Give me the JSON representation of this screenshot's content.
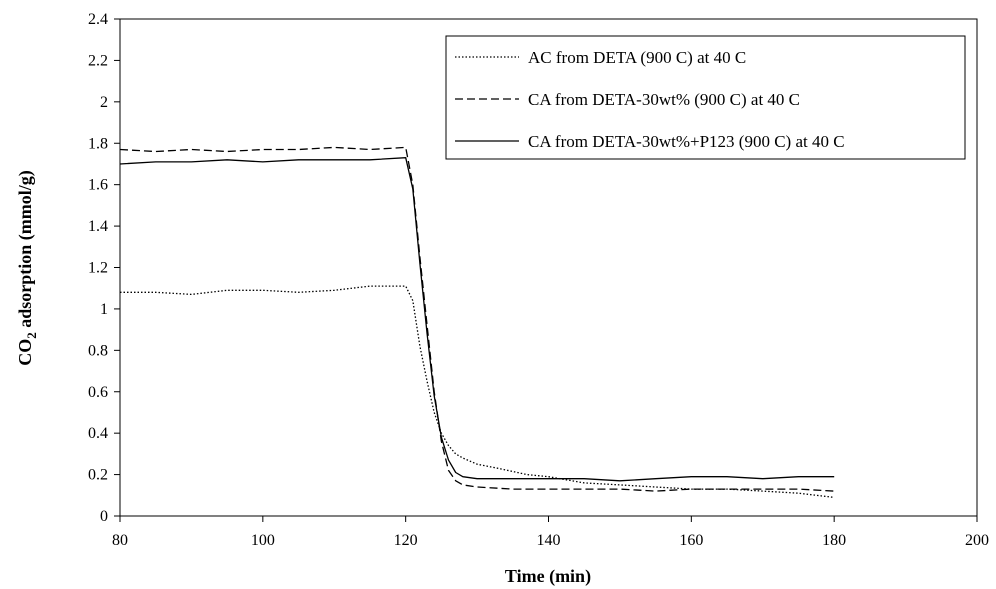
{
  "chart_data": {
    "type": "line",
    "title": "",
    "xlabel": "Time (min)",
    "ylabel_parts": [
      "CO",
      "2",
      " adsorption (mmol/g)"
    ],
    "xlim": [
      80,
      200
    ],
    "ylim": [
      0,
      2.4
    ],
    "x_ticks": [
      80,
      100,
      120,
      140,
      160,
      180,
      200
    ],
    "y_ticks": [
      0,
      0.2,
      0.4,
      0.6,
      0.8,
      1,
      1.2,
      1.4,
      1.6,
      1.8,
      2,
      2.2,
      2.4
    ],
    "grid": false,
    "legend_position": "top-right",
    "series": [
      {
        "name": "AC from DETA (900 C) at 40 C",
        "style": "dotted",
        "color": "#000000",
        "points": [
          [
            80,
            1.08
          ],
          [
            85,
            1.08
          ],
          [
            90,
            1.07
          ],
          [
            95,
            1.09
          ],
          [
            100,
            1.09
          ],
          [
            105,
            1.08
          ],
          [
            110,
            1.09
          ],
          [
            115,
            1.11
          ],
          [
            120,
            1.11
          ],
          [
            121,
            1.04
          ],
          [
            122,
            0.82
          ],
          [
            123,
            0.65
          ],
          [
            124,
            0.5
          ],
          [
            125,
            0.4
          ],
          [
            126,
            0.34
          ],
          [
            127,
            0.3
          ],
          [
            128,
            0.28
          ],
          [
            130,
            0.25
          ],
          [
            133,
            0.23
          ],
          [
            137,
            0.2
          ],
          [
            140,
            0.19
          ],
          [
            145,
            0.16
          ],
          [
            150,
            0.15
          ],
          [
            155,
            0.14
          ],
          [
            160,
            0.13
          ],
          [
            165,
            0.13
          ],
          [
            170,
            0.12
          ],
          [
            175,
            0.11
          ],
          [
            180,
            0.09
          ]
        ]
      },
      {
        "name": "CA from DETA-30wt% (900 C) at 40 C",
        "style": "dashed",
        "color": "#000000",
        "points": [
          [
            80,
            1.77
          ],
          [
            85,
            1.76
          ],
          [
            90,
            1.77
          ],
          [
            95,
            1.76
          ],
          [
            100,
            1.77
          ],
          [
            105,
            1.77
          ],
          [
            110,
            1.78
          ],
          [
            115,
            1.77
          ],
          [
            120,
            1.78
          ],
          [
            121,
            1.6
          ],
          [
            122,
            1.25
          ],
          [
            123,
            0.92
          ],
          [
            124,
            0.6
          ],
          [
            125,
            0.36
          ],
          [
            126,
            0.22
          ],
          [
            127,
            0.17
          ],
          [
            128,
            0.15
          ],
          [
            130,
            0.14
          ],
          [
            135,
            0.13
          ],
          [
            140,
            0.13
          ],
          [
            145,
            0.13
          ],
          [
            150,
            0.13
          ],
          [
            155,
            0.12
          ],
          [
            160,
            0.13
          ],
          [
            165,
            0.13
          ],
          [
            170,
            0.13
          ],
          [
            175,
            0.13
          ],
          [
            180,
            0.12
          ]
        ]
      },
      {
        "name": "CA from DETA-30wt%+P123 (900 C) at 40 C",
        "style": "solid",
        "color": "#000000",
        "points": [
          [
            80,
            1.7
          ],
          [
            85,
            1.71
          ],
          [
            90,
            1.71
          ],
          [
            95,
            1.72
          ],
          [
            100,
            1.71
          ],
          [
            105,
            1.72
          ],
          [
            110,
            1.72
          ],
          [
            115,
            1.72
          ],
          [
            120,
            1.73
          ],
          [
            121,
            1.58
          ],
          [
            122,
            1.22
          ],
          [
            123,
            0.88
          ],
          [
            124,
            0.58
          ],
          [
            125,
            0.38
          ],
          [
            126,
            0.27
          ],
          [
            127,
            0.21
          ],
          [
            128,
            0.19
          ],
          [
            130,
            0.18
          ],
          [
            135,
            0.18
          ],
          [
            140,
            0.18
          ],
          [
            145,
            0.18
          ],
          [
            150,
            0.17
          ],
          [
            155,
            0.18
          ],
          [
            160,
            0.19
          ],
          [
            165,
            0.19
          ],
          [
            170,
            0.18
          ],
          [
            175,
            0.19
          ],
          [
            180,
            0.19
          ]
        ]
      }
    ]
  }
}
